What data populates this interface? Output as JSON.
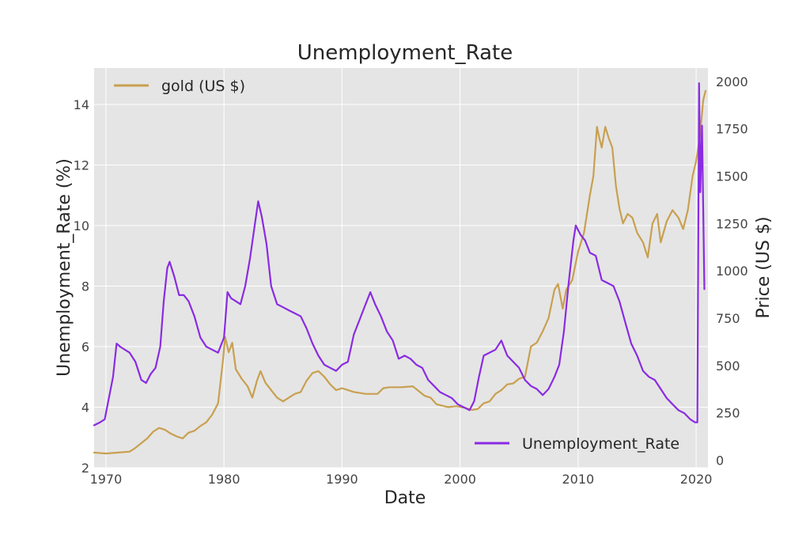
{
  "chart_data": {
    "type": "line",
    "title": "Unemployment_Rate",
    "xlabel": "Date",
    "ylabel_left": "Unemployment_Rate (%)",
    "ylabel_right": "Price (US $)",
    "xlim": [
      1969,
      2021
    ],
    "ylim_left": [
      2,
      15.2
    ],
    "ylim_right": [
      -40,
      2070
    ],
    "x_ticks": [
      1970,
      1980,
      1990,
      2000,
      2010,
      2020
    ],
    "y_left_ticks": [
      2,
      4,
      6,
      8,
      10,
      12,
      14
    ],
    "y_right_ticks": [
      0,
      250,
      500,
      750,
      1000,
      1250,
      1500,
      1750,
      2000
    ],
    "grid": true,
    "legends": [
      {
        "placement": "top-left",
        "entries": [
          "gold (US $)"
        ]
      },
      {
        "placement": "bottom-right",
        "entries": [
          "Unemployment_Rate"
        ]
      }
    ],
    "series": [
      {
        "name": "Unemployment_Rate",
        "axis": "left",
        "color": "#8a2be2",
        "x": [
          1969.0,
          1969.5,
          1969.9,
          1970.3,
          1970.6,
          1970.9,
          1971.2,
          1971.6,
          1972.0,
          1972.5,
          1973.0,
          1973.4,
          1973.8,
          1974.2,
          1974.6,
          1974.9,
          1975.2,
          1975.4,
          1975.8,
          1976.2,
          1976.6,
          1977.0,
          1977.5,
          1978.0,
          1978.5,
          1979.0,
          1979.5,
          1980.0,
          1980.3,
          1980.6,
          1981.0,
          1981.4,
          1981.8,
          1982.2,
          1982.6,
          1982.9,
          1983.2,
          1983.6,
          1984.0,
          1984.5,
          1985.0,
          1985.5,
          1986.0,
          1986.5,
          1987.0,
          1987.5,
          1988.0,
          1988.5,
          1989.0,
          1989.5,
          1990.0,
          1990.5,
          1991.0,
          1991.5,
          1992.0,
          1992.4,
          1992.8,
          1993.3,
          1993.8,
          1994.3,
          1994.8,
          1995.3,
          1995.8,
          1996.3,
          1996.8,
          1997.3,
          1997.8,
          1998.3,
          1998.8,
          1999.3,
          1999.8,
          2000.3,
          2000.8,
          2001.2,
          2001.6,
          2002.0,
          2002.5,
          2003.0,
          2003.5,
          2004.0,
          2004.5,
          2005.0,
          2005.5,
          2006.0,
          2006.5,
          2007.0,
          2007.5,
          2008.0,
          2008.4,
          2008.8,
          2009.2,
          2009.6,
          2009.8,
          2010.2,
          2010.6,
          2011.0,
          2011.5,
          2012.0,
          2012.5,
          2013.0,
          2013.5,
          2014.0,
          2014.5,
          2015.0,
          2015.5,
          2016.0,
          2016.5,
          2017.0,
          2017.5,
          2018.0,
          2018.5,
          2019.0,
          2019.5,
          2019.9,
          2020.1,
          2020.25,
          2020.35,
          2020.5,
          2020.7
        ],
        "values": [
          3.4,
          3.5,
          3.6,
          4.4,
          5.0,
          6.1,
          6.0,
          5.9,
          5.8,
          5.5,
          4.9,
          4.8,
          5.1,
          5.3,
          6.0,
          7.5,
          8.6,
          8.8,
          8.3,
          7.7,
          7.7,
          7.5,
          7.0,
          6.3,
          6.0,
          5.9,
          5.8,
          6.3,
          7.8,
          7.6,
          7.5,
          7.4,
          8.0,
          8.9,
          10.0,
          10.8,
          10.3,
          9.4,
          8.0,
          7.4,
          7.3,
          7.2,
          7.1,
          7.0,
          6.6,
          6.1,
          5.7,
          5.4,
          5.3,
          5.2,
          5.4,
          5.5,
          6.4,
          6.9,
          7.4,
          7.8,
          7.4,
          7.0,
          6.5,
          6.2,
          5.6,
          5.7,
          5.6,
          5.4,
          5.3,
          4.9,
          4.7,
          4.5,
          4.4,
          4.3,
          4.1,
          4.0,
          3.9,
          4.2,
          5.0,
          5.7,
          5.8,
          5.9,
          6.2,
          5.7,
          5.5,
          5.3,
          4.9,
          4.7,
          4.6,
          4.4,
          4.6,
          5.0,
          5.4,
          6.5,
          8.1,
          9.5,
          10.0,
          9.7,
          9.5,
          9.1,
          9.0,
          8.2,
          8.1,
          8.0,
          7.5,
          6.8,
          6.1,
          5.7,
          5.2,
          5.0,
          4.9,
          4.6,
          4.3,
          4.1,
          3.9,
          3.8,
          3.6,
          3.5,
          3.5,
          14.7,
          11.1,
          13.3,
          7.9
        ]
      },
      {
        "name": "gold (US $)",
        "axis": "right",
        "color": "#c8a050",
        "x": [
          1969.0,
          1970.0,
          1971.0,
          1972.0,
          1972.5,
          1973.0,
          1973.5,
          1974.0,
          1974.5,
          1975.0,
          1975.5,
          1976.0,
          1976.5,
          1977.0,
          1977.5,
          1978.0,
          1978.5,
          1979.0,
          1979.5,
          1979.9,
          1980.1,
          1980.4,
          1980.7,
          1981.0,
          1981.5,
          1982.0,
          1982.4,
          1982.8,
          1983.1,
          1983.5,
          1984.0,
          1984.5,
          1985.0,
          1985.5,
          1986.0,
          1986.5,
          1987.0,
          1987.5,
          1988.0,
          1988.5,
          1989.0,
          1989.5,
          1990.0,
          1991.0,
          1992.0,
          1993.0,
          1993.5,
          1994.0,
          1995.0,
          1996.0,
          1997.0,
          1997.5,
          1998.0,
          1999.0,
          1999.7,
          2000.5,
          2001.0,
          2001.5,
          2002.0,
          2002.5,
          2003.0,
          2003.5,
          2004.0,
          2004.5,
          2005.0,
          2005.5,
          2006.0,
          2006.5,
          2007.0,
          2007.5,
          2008.0,
          2008.3,
          2008.7,
          2009.0,
          2009.5,
          2010.0,
          2010.5,
          2011.0,
          2011.3,
          2011.6,
          2011.8,
          2012.0,
          2012.3,
          2012.6,
          2012.9,
          2013.2,
          2013.5,
          2013.8,
          2014.2,
          2014.6,
          2015.0,
          2015.5,
          2015.9,
          2016.3,
          2016.7,
          2017.0,
          2017.5,
          2018.0,
          2018.5,
          2018.9,
          2019.3,
          2019.7,
          2020.0,
          2020.3,
          2020.6,
          2020.8
        ],
        "values": [
          40,
          35,
          40,
          45,
          65,
          90,
          115,
          150,
          170,
          160,
          140,
          125,
          115,
          145,
          155,
          180,
          200,
          240,
          300,
          520,
          650,
          570,
          620,
          480,
          430,
          390,
          330,
          420,
          470,
          410,
          370,
          330,
          310,
          330,
          350,
          360,
          420,
          460,
          470,
          440,
          400,
          370,
          380,
          360,
          350,
          350,
          380,
          385,
          385,
          390,
          340,
          330,
          295,
          280,
          285,
          275,
          265,
          270,
          300,
          310,
          350,
          370,
          400,
          405,
          430,
          440,
          600,
          620,
          680,
          750,
          900,
          930,
          800,
          900,
          950,
          1100,
          1200,
          1400,
          1500,
          1760,
          1700,
          1650,
          1760,
          1700,
          1650,
          1450,
          1330,
          1250,
          1300,
          1280,
          1200,
          1150,
          1070,
          1250,
          1300,
          1150,
          1260,
          1320,
          1280,
          1220,
          1320,
          1500,
          1580,
          1700,
          1900,
          1950
        ]
      }
    ]
  }
}
